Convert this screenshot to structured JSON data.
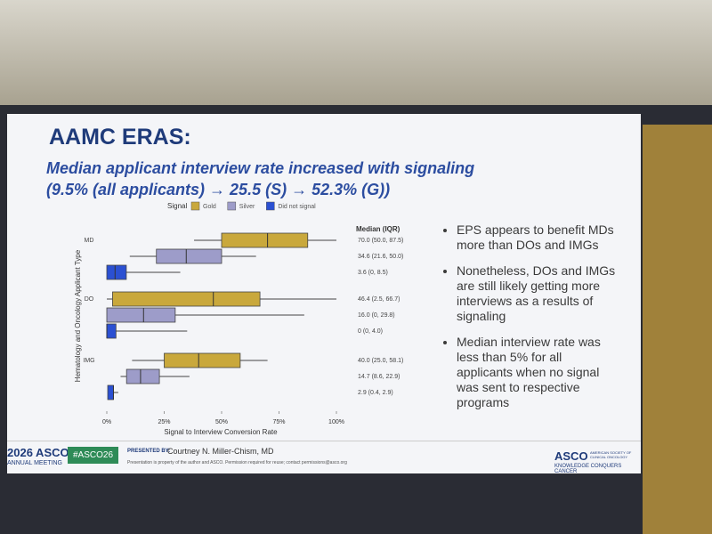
{
  "slide": {
    "title": "AAMC ERAS:",
    "subtitle_lines": [
      "Median applicant interview rate increased with signaling",
      "(9.5% (all applicants) → 25.5 (S) → 52.3% (G))"
    ],
    "bullets": [
      "EPS appears to benefit MDs more than DOs and IMGs",
      "Nonetheless, DOs and IMGs are still likely getting more interviews as a results of signaling",
      "Median interview rate was less than 5% for all applicants when no signal was sent to respective programs"
    ],
    "footer": {
      "meeting": "2026 ASCO",
      "meeting_sub": "ANNUAL MEETING",
      "hashtag": "#ASCO26",
      "presented_by": "PRESENTED BY:",
      "presenter": "Courtney N. Miller-Chism, MD",
      "notice": "Presentation is property of the author and ASCO. Permission required for reuse; contact permissions@asco.org",
      "logo": "ASCO",
      "logo_sub": "AMERICAN SOCIETY OF CLINICAL ONCOLOGY",
      "tagline": "KNOWLEDGE CONQUERS CANCER"
    }
  },
  "chart_data": {
    "type": "box",
    "orientation": "horizontal",
    "legend_title": "Signal",
    "label_header": "Median (IQR)",
    "x_label": "Signal to Interview Conversion Rate",
    "y_label": "Hematology and Oncology Applicant Type",
    "categories": [
      "MD",
      "DO",
      "IMG"
    ],
    "xlim": [
      0,
      100
    ],
    "xticks": [
      {
        "value": 0,
        "label": "0%"
      },
      {
        "value": 25,
        "label": "25%"
      },
      {
        "value": 50,
        "label": "50%"
      },
      {
        "value": 75,
        "label": "75%"
      },
      {
        "value": 100,
        "label": "100%"
      }
    ],
    "series": [
      {
        "name": "Gold",
        "color": "#c9a83c",
        "min": [
          38,
          0,
          11
        ],
        "q1": [
          50.0,
          2.5,
          25.0
        ],
        "median": [
          70.0,
          46.4,
          40.0
        ],
        "q3": [
          87.5,
          66.7,
          58.1
        ],
        "max": [
          100,
          100,
          70
        ],
        "value_labels": [
          "70.0 (50.0, 87.5)",
          "46.4 (2.5, 66.7)",
          "40.0 (25.0, 58.1)"
        ]
      },
      {
        "name": "Silver",
        "color": "#9d9cc9",
        "min": [
          10,
          0,
          6
        ],
        "q1": [
          21.6,
          0,
          8.6
        ],
        "median": [
          34.6,
          16.0,
          14.7
        ],
        "q3": [
          50.0,
          29.8,
          22.9
        ],
        "max": [
          65,
          86,
          36
        ],
        "value_labels": [
          "34.6 (21.6, 50.0)",
          "16.0 (0, 29.8)",
          "14.7 (8.6, 22.9)"
        ]
      },
      {
        "name": "Did not signal",
        "color": "#2b50d2",
        "min": [
          0,
          0,
          0.4
        ],
        "q1": [
          0,
          0,
          0.4
        ],
        "median": [
          3.6,
          0,
          2.9
        ],
        "q3": [
          8.5,
          4.0,
          2.9
        ],
        "max": [
          32,
          35,
          5
        ],
        "value_labels": [
          "3.6 (0, 8.5)",
          "0 (0, 4.0)",
          "2.9 (0.4, 2.9)"
        ]
      }
    ]
  }
}
